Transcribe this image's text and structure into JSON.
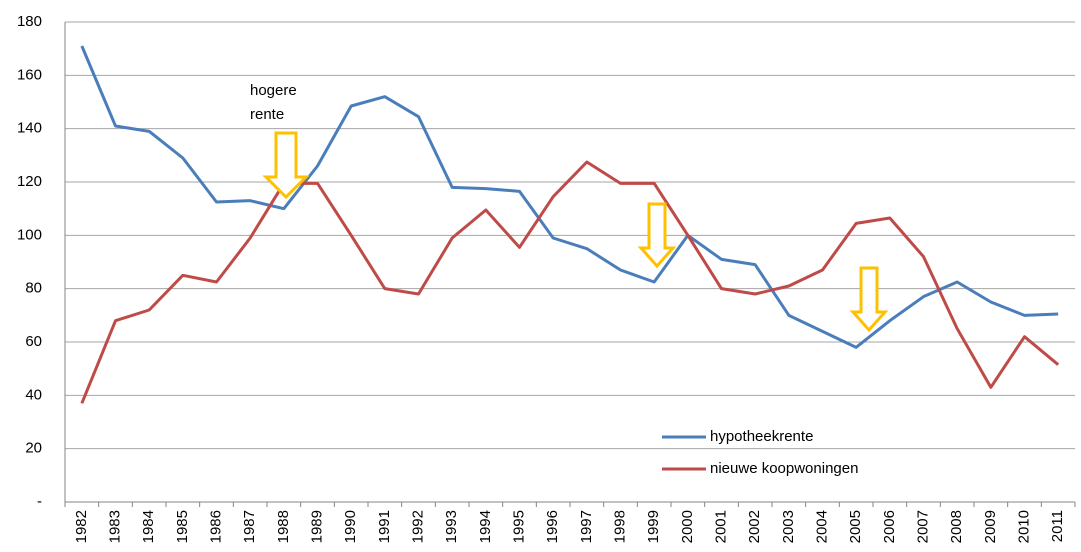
{
  "chart_data": {
    "type": "line",
    "categories": [
      "1982",
      "1983",
      "1984",
      "1985",
      "1986",
      "1987",
      "1988",
      "1989",
      "1990",
      "1991",
      "1992",
      "1993",
      "1994",
      "1995",
      "1996",
      "1997",
      "1998",
      "1999",
      "2000",
      "2001",
      "2002",
      "2003",
      "2004",
      "2005",
      "2006",
      "2007",
      "2008",
      "2009",
      "2010",
      "2011"
    ],
    "series": [
      {
        "name": "hypotheekrente",
        "color": "#4a7ebb",
        "values": [
          171,
          141,
          139,
          129,
          112.5,
          113,
          110,
          126,
          148.5,
          152,
          144.5,
          118,
          117.5,
          116.5,
          99,
          95,
          87,
          82.5,
          100,
          91,
          89,
          70,
          64,
          58,
          68,
          77,
          82.5,
          75,
          70,
          70.5
        ]
      },
      {
        "name": "nieuwe koopwoningen",
        "color": "#be4b48",
        "values": [
          37,
          68,
          72,
          85,
          82.5,
          99,
          119.5,
          119.5,
          100,
          80,
          78,
          99,
          109.5,
          95.5,
          114.5,
          127.5,
          119.5,
          119.5,
          100,
          80,
          78,
          81,
          87,
          104.5,
          106.5,
          92,
          65,
          43,
          62,
          51.5
        ]
      }
    ],
    "ylim": [
      0,
      180
    ],
    "yticks": [
      {
        "value": 0,
        "label": "-"
      },
      20,
      40,
      60,
      80,
      100,
      120,
      140,
      160,
      180
    ],
    "grid": true,
    "legend": "lower right",
    "annotation": [
      "hogere",
      "rente"
    ]
  }
}
